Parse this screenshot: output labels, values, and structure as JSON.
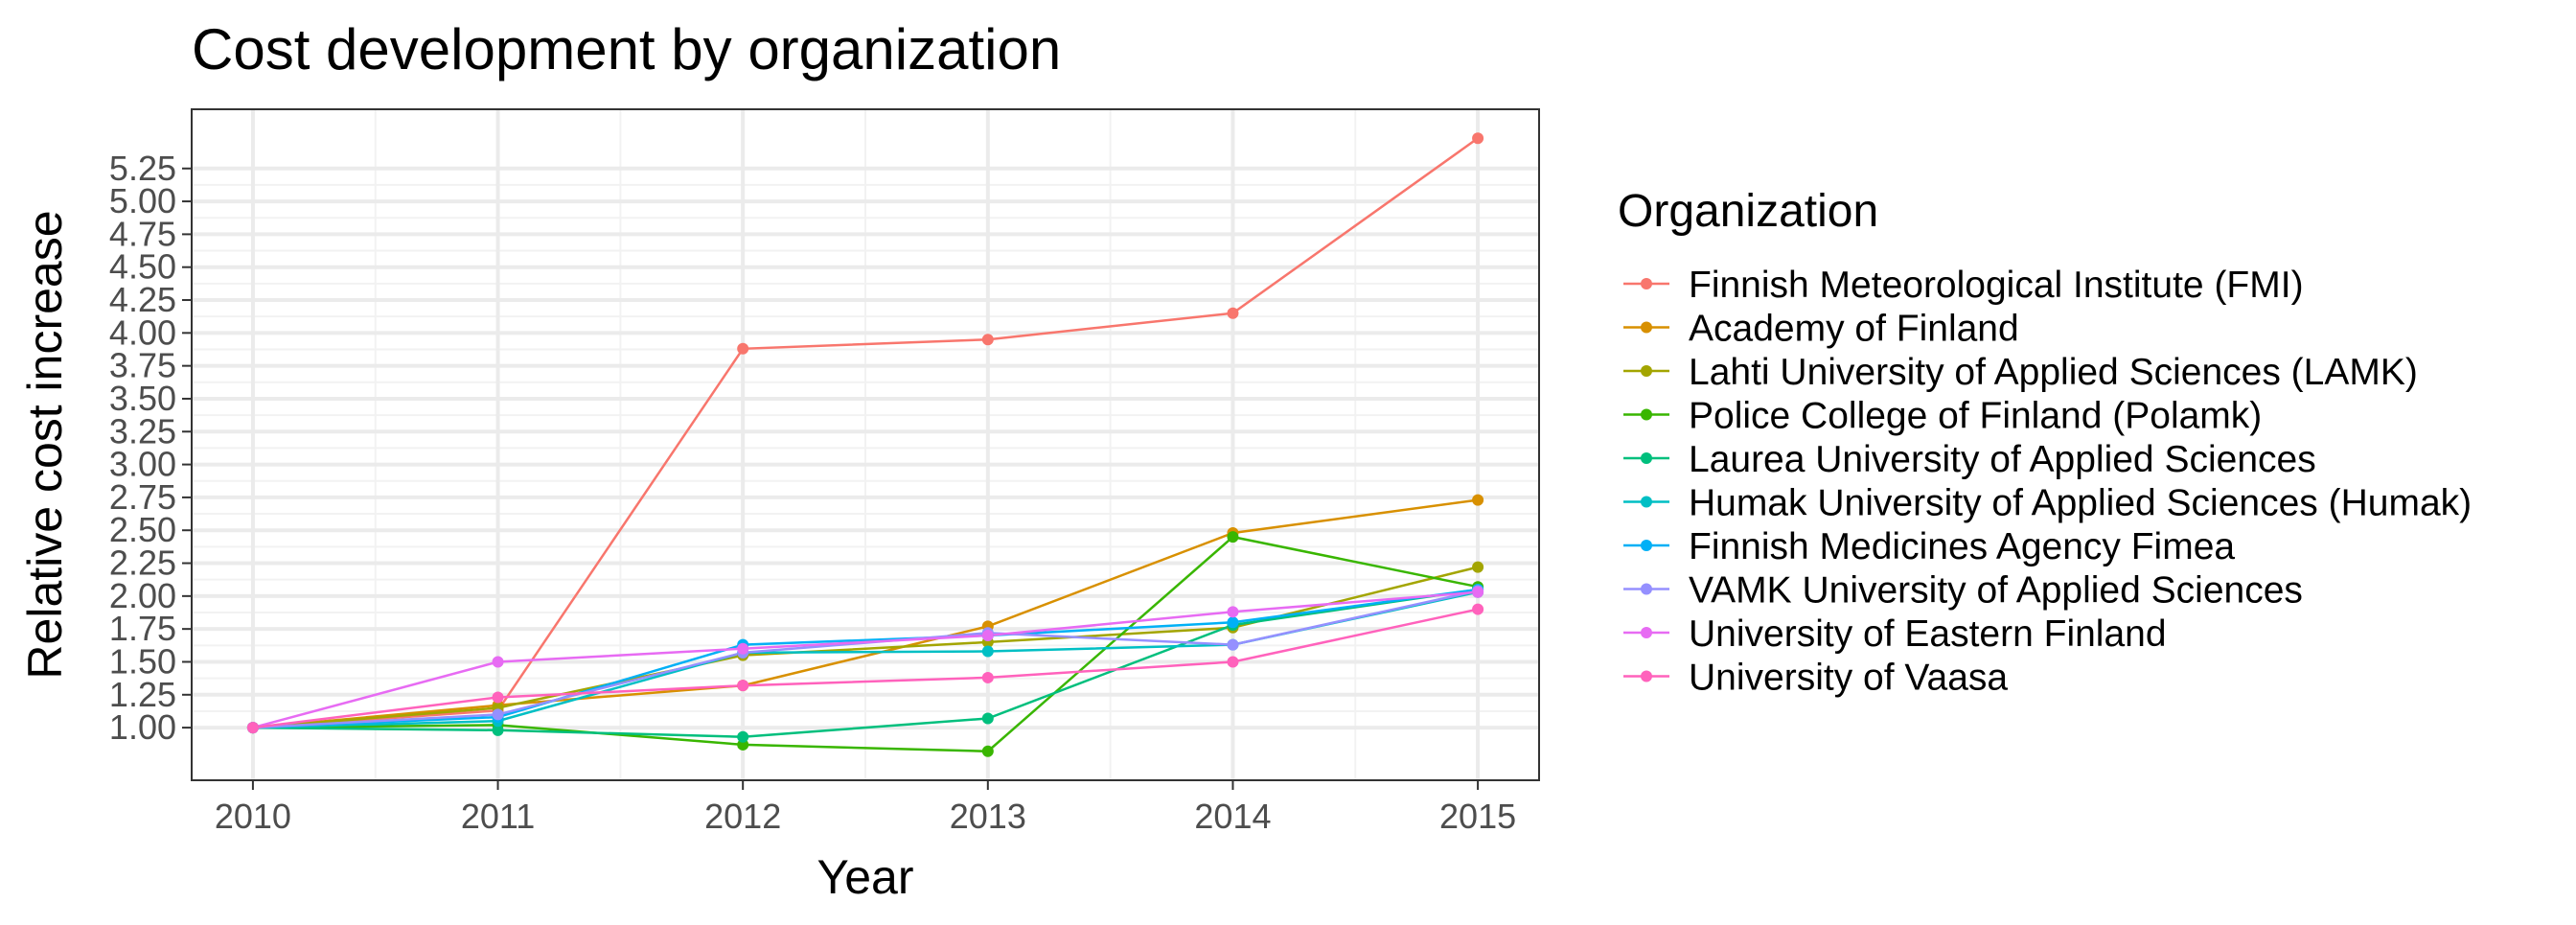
{
  "chart_data": {
    "type": "line",
    "title": "Cost development by organization",
    "xlabel": "Year",
    "ylabel": "Relative cost increase",
    "x": [
      2010,
      2011,
      2012,
      2013,
      2014,
      2015
    ],
    "x_ticks": [
      "2010",
      "2011",
      "2012",
      "2013",
      "2014",
      "2015"
    ],
    "xlim": [
      2009.75,
      2015.25
    ],
    "ylim": [
      0.6,
      5.7
    ],
    "y_ticks": [
      1.0,
      1.25,
      1.5,
      1.75,
      2.0,
      2.25,
      2.5,
      2.75,
      3.0,
      3.25,
      3.5,
      3.75,
      4.0,
      4.25,
      4.5,
      4.75,
      5.0,
      5.25
    ],
    "y_tick_labels": [
      "1.00",
      "1.25",
      "1.50",
      "1.75",
      "2.00",
      "2.25",
      "2.50",
      "2.75",
      "3.00",
      "3.25",
      "3.50",
      "3.75",
      "4.00",
      "4.25",
      "4.50",
      "4.75",
      "5.00",
      "5.25"
    ],
    "grid": true,
    "legend_title": "Organization",
    "legend_position": "right",
    "series": [
      {
        "name": "Finnish Meteorological Institute (FMI)",
        "color": "#F8766D",
        "values": [
          1.0,
          1.13,
          3.88,
          3.95,
          4.15,
          5.48
        ]
      },
      {
        "name": "Academy of Finland",
        "color": "#D89000",
        "values": [
          1.0,
          1.17,
          1.32,
          1.77,
          2.48,
          2.73
        ]
      },
      {
        "name": "Lahti University of Applied Sciences (LAMK)",
        "color": "#A3A500",
        "values": [
          1.0,
          1.15,
          1.55,
          1.65,
          1.76,
          2.22
        ]
      },
      {
        "name": "Police College of Finland (Polamk)",
        "color": "#39B600",
        "values": [
          1.0,
          1.02,
          0.87,
          0.82,
          2.45,
          2.07
        ]
      },
      {
        "name": "Laurea University of Applied Sciences",
        "color": "#00BF7D",
        "values": [
          1.0,
          0.98,
          0.93,
          1.07,
          1.78,
          2.05
        ]
      },
      {
        "name": "Humak University of Applied Sciences (Humak)",
        "color": "#00BFC4",
        "values": [
          1.0,
          1.05,
          1.57,
          1.58,
          1.63,
          2.03
        ]
      },
      {
        "name": "Finnish Medicines Agency Fimea",
        "color": "#00B0F6",
        "values": [
          1.0,
          1.08,
          1.63,
          1.7,
          1.8,
          2.05
        ]
      },
      {
        "name": "VAMK University of Applied Sciences",
        "color": "#9590FF",
        "values": [
          1.0,
          1.1,
          1.57,
          1.72,
          1.63,
          2.04
        ]
      },
      {
        "name": "University of Eastern Finland",
        "color": "#E76BF3",
        "values": [
          1.0,
          1.5,
          1.6,
          1.7,
          1.88,
          2.03
        ]
      },
      {
        "name": "University of Vaasa",
        "color": "#FF62BC",
        "values": [
          1.0,
          1.23,
          1.32,
          1.38,
          1.5,
          1.9
        ]
      }
    ]
  }
}
